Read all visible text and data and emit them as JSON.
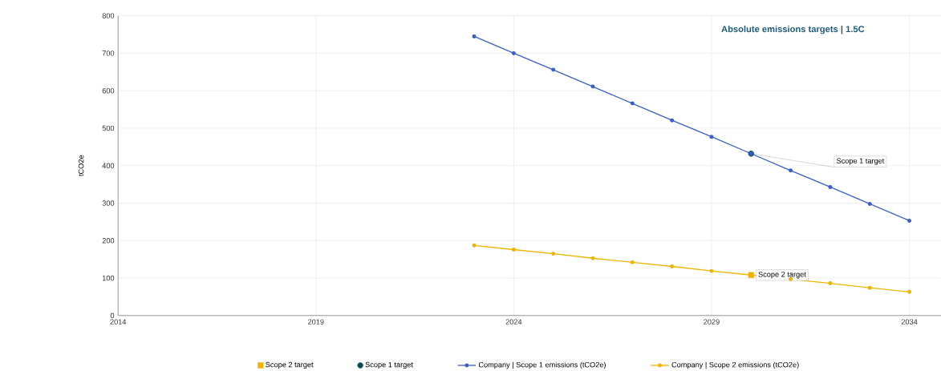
{
  "chart_data": {
    "type": "line",
    "title": "Absolute emissions targets | 1.5C",
    "ylabel": "tCO2e",
    "xlim": [
      2014,
      2034.8
    ],
    "xticks": [
      2014,
      2019,
      2024,
      2029,
      2034
    ],
    "ylim": [
      0,
      800
    ],
    "yticks": [
      0,
      100,
      200,
      300,
      400,
      500,
      600,
      700,
      800
    ],
    "grid": true,
    "legend": "bottom",
    "line_style": "solid",
    "series": [
      {
        "name": "Scope 2 target",
        "type": "scatter",
        "marker": "square",
        "color": "#f0b400",
        "x": [
          2030
        ],
        "values": [
          108
        ]
      },
      {
        "name": "Scope 1 target",
        "type": "scatter",
        "marker": "circle",
        "color": "#0d4a5a",
        "x": [
          2030
        ],
        "values": [
          432
        ]
      },
      {
        "name": "Company | Scope 1 emissions (tCO2e)",
        "marker": "circle",
        "color": "#3a5fc8",
        "x": [
          2023,
          2024,
          2025,
          2026,
          2027,
          2028,
          2029,
          2030,
          2031,
          2032,
          2033,
          2034
        ],
        "values": [
          745,
          700,
          656,
          611,
          566,
          521,
          477,
          432,
          387,
          343,
          298,
          253
        ]
      },
      {
        "name": "Company | Scope 2 emissions (tCO2e)",
        "marker": "circle",
        "color": "#f0b400",
        "x": [
          2023,
          2024,
          2025,
          2026,
          2027,
          2028,
          2029,
          2030,
          2031,
          2032,
          2033,
          2034
        ],
        "values": [
          187,
          176,
          165,
          153,
          142,
          131,
          119,
          108,
          97,
          86,
          74,
          63
        ]
      }
    ],
    "annotations": [
      {
        "text": "Scope 1 target",
        "x": 2030,
        "y": 432
      },
      {
        "text": "Scope 2 target",
        "x": 2030,
        "y": 108
      }
    ]
  }
}
